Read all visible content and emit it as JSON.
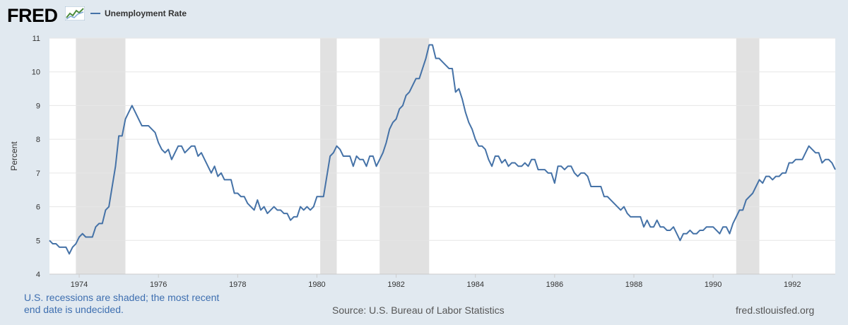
{
  "header": {
    "logo_text": "FRED",
    "legend_label": "Unemployment Rate"
  },
  "footer": {
    "note_line1": "U.S. recessions are shaded; the most recent",
    "note_line2": "end date is undecided.",
    "source": "Source: U.S. Bureau of Labor Statistics",
    "site": "fred.stlouisfed.org"
  },
  "colors": {
    "line": "#4572a7",
    "recession": "#e1e1e1",
    "background": "#e1e9f0"
  },
  "chart_data": {
    "type": "line",
    "title": "",
    "xlabel": "",
    "ylabel": "Percent",
    "ylim": [
      4,
      11
    ],
    "xlim": [
      "1973-04",
      "1993-02"
    ],
    "yticks": [
      4,
      5,
      6,
      7,
      8,
      9,
      10,
      11
    ],
    "xticks": [
      "1974",
      "1976",
      "1978",
      "1980",
      "1982",
      "1984",
      "1986",
      "1988",
      "1990",
      "1992"
    ],
    "grid": "horizontal",
    "recessions": [
      [
        "1973-12",
        "1975-03"
      ],
      [
        "1980-02",
        "1980-07"
      ],
      [
        "1981-08",
        "1982-11"
      ],
      [
        "1990-08",
        "1991-03"
      ]
    ],
    "series": [
      {
        "name": "Unemployment Rate",
        "x": [
          "1973-04",
          "1973-05",
          "1973-06",
          "1973-07",
          "1973-08",
          "1973-09",
          "1973-10",
          "1973-11",
          "1973-12",
          "1974-01",
          "1974-02",
          "1974-03",
          "1974-04",
          "1974-05",
          "1974-06",
          "1974-07",
          "1974-08",
          "1974-09",
          "1974-10",
          "1974-11",
          "1974-12",
          "1975-01",
          "1975-02",
          "1975-03",
          "1975-04",
          "1975-05",
          "1975-06",
          "1975-07",
          "1975-08",
          "1975-09",
          "1975-10",
          "1975-11",
          "1975-12",
          "1976-01",
          "1976-02",
          "1976-03",
          "1976-04",
          "1976-05",
          "1976-06",
          "1976-07",
          "1976-08",
          "1976-09",
          "1976-10",
          "1976-11",
          "1976-12",
          "1977-01",
          "1977-02",
          "1977-03",
          "1977-04",
          "1977-05",
          "1977-06",
          "1977-07",
          "1977-08",
          "1977-09",
          "1977-10",
          "1977-11",
          "1977-12",
          "1978-01",
          "1978-02",
          "1978-03",
          "1978-04",
          "1978-05",
          "1978-06",
          "1978-07",
          "1978-08",
          "1978-09",
          "1978-10",
          "1978-11",
          "1978-12",
          "1979-01",
          "1979-02",
          "1979-03",
          "1979-04",
          "1979-05",
          "1979-06",
          "1979-07",
          "1979-08",
          "1979-09",
          "1979-10",
          "1979-11",
          "1979-12",
          "1980-01",
          "1980-02",
          "1980-03",
          "1980-04",
          "1980-05",
          "1980-06",
          "1980-07",
          "1980-08",
          "1980-09",
          "1980-10",
          "1980-11",
          "1980-12",
          "1981-01",
          "1981-02",
          "1981-03",
          "1981-04",
          "1981-05",
          "1981-06",
          "1981-07",
          "1981-08",
          "1981-09",
          "1981-10",
          "1981-11",
          "1981-12",
          "1982-01",
          "1982-02",
          "1982-03",
          "1982-04",
          "1982-05",
          "1982-06",
          "1982-07",
          "1982-08",
          "1982-09",
          "1982-10",
          "1982-11",
          "1982-12",
          "1983-01",
          "1983-02",
          "1983-03",
          "1983-04",
          "1983-05",
          "1983-06",
          "1983-07",
          "1983-08",
          "1983-09",
          "1983-10",
          "1983-11",
          "1983-12",
          "1984-01",
          "1984-02",
          "1984-03",
          "1984-04",
          "1984-05",
          "1984-06",
          "1984-07",
          "1984-08",
          "1984-09",
          "1984-10",
          "1984-11",
          "1984-12",
          "1985-01",
          "1985-02",
          "1985-03",
          "1985-04",
          "1985-05",
          "1985-06",
          "1985-07",
          "1985-08",
          "1985-09",
          "1985-10",
          "1985-11",
          "1985-12",
          "1986-01",
          "1986-02",
          "1986-03",
          "1986-04",
          "1986-05",
          "1986-06",
          "1986-07",
          "1986-08",
          "1986-09",
          "1986-10",
          "1986-11",
          "1986-12",
          "1987-01",
          "1987-02",
          "1987-03",
          "1987-04",
          "1987-05",
          "1987-06",
          "1987-07",
          "1987-08",
          "1987-09",
          "1987-10",
          "1987-11",
          "1987-12",
          "1988-01",
          "1988-02",
          "1988-03",
          "1988-04",
          "1988-05",
          "1988-06",
          "1988-07",
          "1988-08",
          "1988-09",
          "1988-10",
          "1988-11",
          "1988-12",
          "1989-01",
          "1989-02",
          "1989-03",
          "1989-04",
          "1989-05",
          "1989-06",
          "1989-07",
          "1989-08",
          "1989-09",
          "1989-10",
          "1989-11",
          "1989-12",
          "1990-01",
          "1990-02",
          "1990-03",
          "1990-04",
          "1990-05",
          "1990-06",
          "1990-07",
          "1990-08",
          "1990-09",
          "1990-10",
          "1990-11",
          "1990-12",
          "1991-01",
          "1991-02",
          "1991-03",
          "1991-04",
          "1991-05",
          "1991-06",
          "1991-07",
          "1991-08",
          "1991-09",
          "1991-10",
          "1991-11",
          "1991-12",
          "1992-01",
          "1992-02",
          "1992-03",
          "1992-04",
          "1992-05",
          "1992-06",
          "1992-07",
          "1992-08",
          "1992-09",
          "1992-10",
          "1992-11",
          "1992-12",
          "1993-01",
          "1993-02"
        ],
        "values": [
          5.0,
          4.9,
          4.9,
          4.8,
          4.8,
          4.8,
          4.6,
          4.8,
          4.9,
          5.1,
          5.2,
          5.1,
          5.1,
          5.1,
          5.4,
          5.5,
          5.5,
          5.9,
          6.0,
          6.6,
          7.2,
          8.1,
          8.1,
          8.6,
          8.8,
          9.0,
          8.8,
          8.6,
          8.4,
          8.4,
          8.4,
          8.3,
          8.2,
          7.9,
          7.7,
          7.6,
          7.7,
          7.4,
          7.6,
          7.8,
          7.8,
          7.6,
          7.7,
          7.8,
          7.8,
          7.5,
          7.6,
          7.4,
          7.2,
          7.0,
          7.2,
          6.9,
          7.0,
          6.8,
          6.8,
          6.8,
          6.4,
          6.4,
          6.3,
          6.3,
          6.1,
          6.0,
          5.9,
          6.2,
          5.9,
          6.0,
          5.8,
          5.9,
          6.0,
          5.9,
          5.9,
          5.8,
          5.8,
          5.6,
          5.7,
          5.7,
          6.0,
          5.9,
          6.0,
          5.9,
          6.0,
          6.3,
          6.3,
          6.3,
          6.9,
          7.5,
          7.6,
          7.8,
          7.7,
          7.5,
          7.5,
          7.5,
          7.2,
          7.5,
          7.4,
          7.4,
          7.2,
          7.5,
          7.5,
          7.2,
          7.4,
          7.6,
          7.9,
          8.3,
          8.5,
          8.6,
          8.9,
          9.0,
          9.3,
          9.4,
          9.6,
          9.8,
          9.8,
          10.1,
          10.4,
          10.8,
          10.8,
          10.4,
          10.4,
          10.3,
          10.2,
          10.1,
          10.1,
          9.4,
          9.5,
          9.2,
          8.8,
          8.5,
          8.3,
          8.0,
          7.8,
          7.8,
          7.7,
          7.4,
          7.2,
          7.5,
          7.5,
          7.3,
          7.4,
          7.2,
          7.3,
          7.3,
          7.2,
          7.2,
          7.3,
          7.2,
          7.4,
          7.4,
          7.1,
          7.1,
          7.1,
          7.0,
          7.0,
          6.7,
          7.2,
          7.2,
          7.1,
          7.2,
          7.2,
          7.0,
          6.9,
          7.0,
          7.0,
          6.9,
          6.6,
          6.6,
          6.6,
          6.6,
          6.3,
          6.3,
          6.2,
          6.1,
          6.0,
          5.9,
          6.0,
          5.8,
          5.7,
          5.7,
          5.7,
          5.7,
          5.4,
          5.6,
          5.4,
          5.4,
          5.6,
          5.4,
          5.4,
          5.3,
          5.3,
          5.4,
          5.2,
          5.0,
          5.2,
          5.2,
          5.3,
          5.2,
          5.2,
          5.3,
          5.3,
          5.4,
          5.4,
          5.4,
          5.3,
          5.2,
          5.4,
          5.4,
          5.2,
          5.5,
          5.7,
          5.9,
          5.9,
          6.2,
          6.3,
          6.4,
          6.6,
          6.8,
          6.7,
          6.9,
          6.9,
          6.8,
          6.9,
          6.9,
          7.0,
          7.0,
          7.3,
          7.3,
          7.4,
          7.4,
          7.4,
          7.6,
          7.8,
          7.7,
          7.6,
          7.6,
          7.3,
          7.4,
          7.4,
          7.3,
          7.1
        ]
      }
    ]
  }
}
